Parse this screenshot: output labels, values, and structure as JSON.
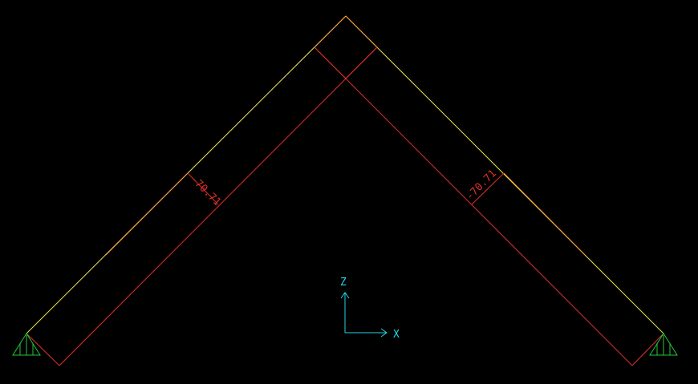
{
  "diagram": {
    "members": [
      {
        "name": "left-member",
        "axial_force_label": "-70.71"
      },
      {
        "name": "right-member",
        "axial_force_label": "-70.71"
      }
    ],
    "supports": [
      {
        "name": "left-support",
        "type": "pin"
      },
      {
        "name": "right-support",
        "type": "pin"
      }
    ],
    "axes": {
      "vertical_label": "Z",
      "horizontal_label": "X"
    },
    "colors": {
      "background": "#000000",
      "frame_line": "#e8e84a",
      "diagram_outline": "#e0302a",
      "diagram_highlight": "#ff9a3c",
      "value_text": "#e0302a",
      "support": "#22c83a",
      "axes": "#22d6e6"
    }
  }
}
